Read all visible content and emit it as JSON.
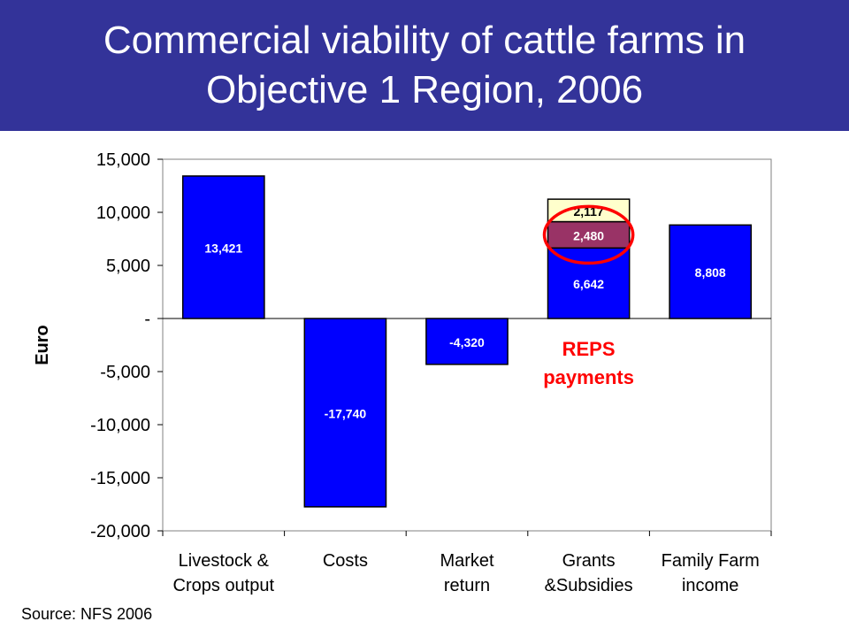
{
  "title": "Commercial viability of cattle farms in Objective 1 Region, 2006",
  "source": "Source:  NFS 2006",
  "colors": {
    "header_bg": "#333399",
    "bar": "#0000ff",
    "reps": "#993366",
    "other_grants": "#ffffcc",
    "highlight": "#ff0000",
    "annotation": "#ff0000"
  },
  "chart_data": {
    "type": "bar",
    "xlabel": "",
    "ylabel": "Euro",
    "ylim": [
      -20000,
      15000
    ],
    "yticks": [
      15000,
      10000,
      5000,
      0,
      -5000,
      -10000,
      -15000,
      -20000
    ],
    "ytick_labels": [
      "15,000",
      "10,000",
      "5,000",
      "-",
      "-5,000",
      "-10,000",
      "-15,000",
      "-20,000"
    ],
    "categories": [
      [
        "Livestock &",
        "Crops output"
      ],
      [
        "Costs"
      ],
      [
        "Market",
        "return"
      ],
      [
        "Grants",
        "&Subsidies"
      ],
      [
        "Family Farm",
        "income"
      ]
    ],
    "segments": [
      {
        "category": 0,
        "base": 0,
        "value": 13421,
        "label": "13,421",
        "color": "#0000ff",
        "label_color": "#ffffff"
      },
      {
        "category": 1,
        "base": 0,
        "value": -17740,
        "label": "-17,740",
        "color": "#0000ff",
        "label_color": "#ffffff"
      },
      {
        "category": 2,
        "base": 0,
        "value": -4320,
        "label": "-4,320",
        "color": "#0000ff",
        "label_color": "#ffffff"
      },
      {
        "category": 3,
        "base": 0,
        "value": 6642,
        "label": "6,642",
        "color": "#0000ff",
        "label_color": "#ffffff"
      },
      {
        "category": 3,
        "base": 6642,
        "value": 2480,
        "label": "2,480",
        "color": "#993366",
        "label_color": "#ffffff"
      },
      {
        "category": 3,
        "base": 9122,
        "value": 2117,
        "label": "2,117",
        "color": "#ffffcc",
        "label_color": "#000000"
      },
      {
        "category": 4,
        "base": 0,
        "value": 8808,
        "label": "8,808",
        "color": "#0000ff",
        "label_color": "#ffffff"
      }
    ],
    "annotation": {
      "text": [
        "REPS",
        "payments"
      ],
      "target_segment": 4
    },
    "grid": false,
    "legend": "none"
  }
}
